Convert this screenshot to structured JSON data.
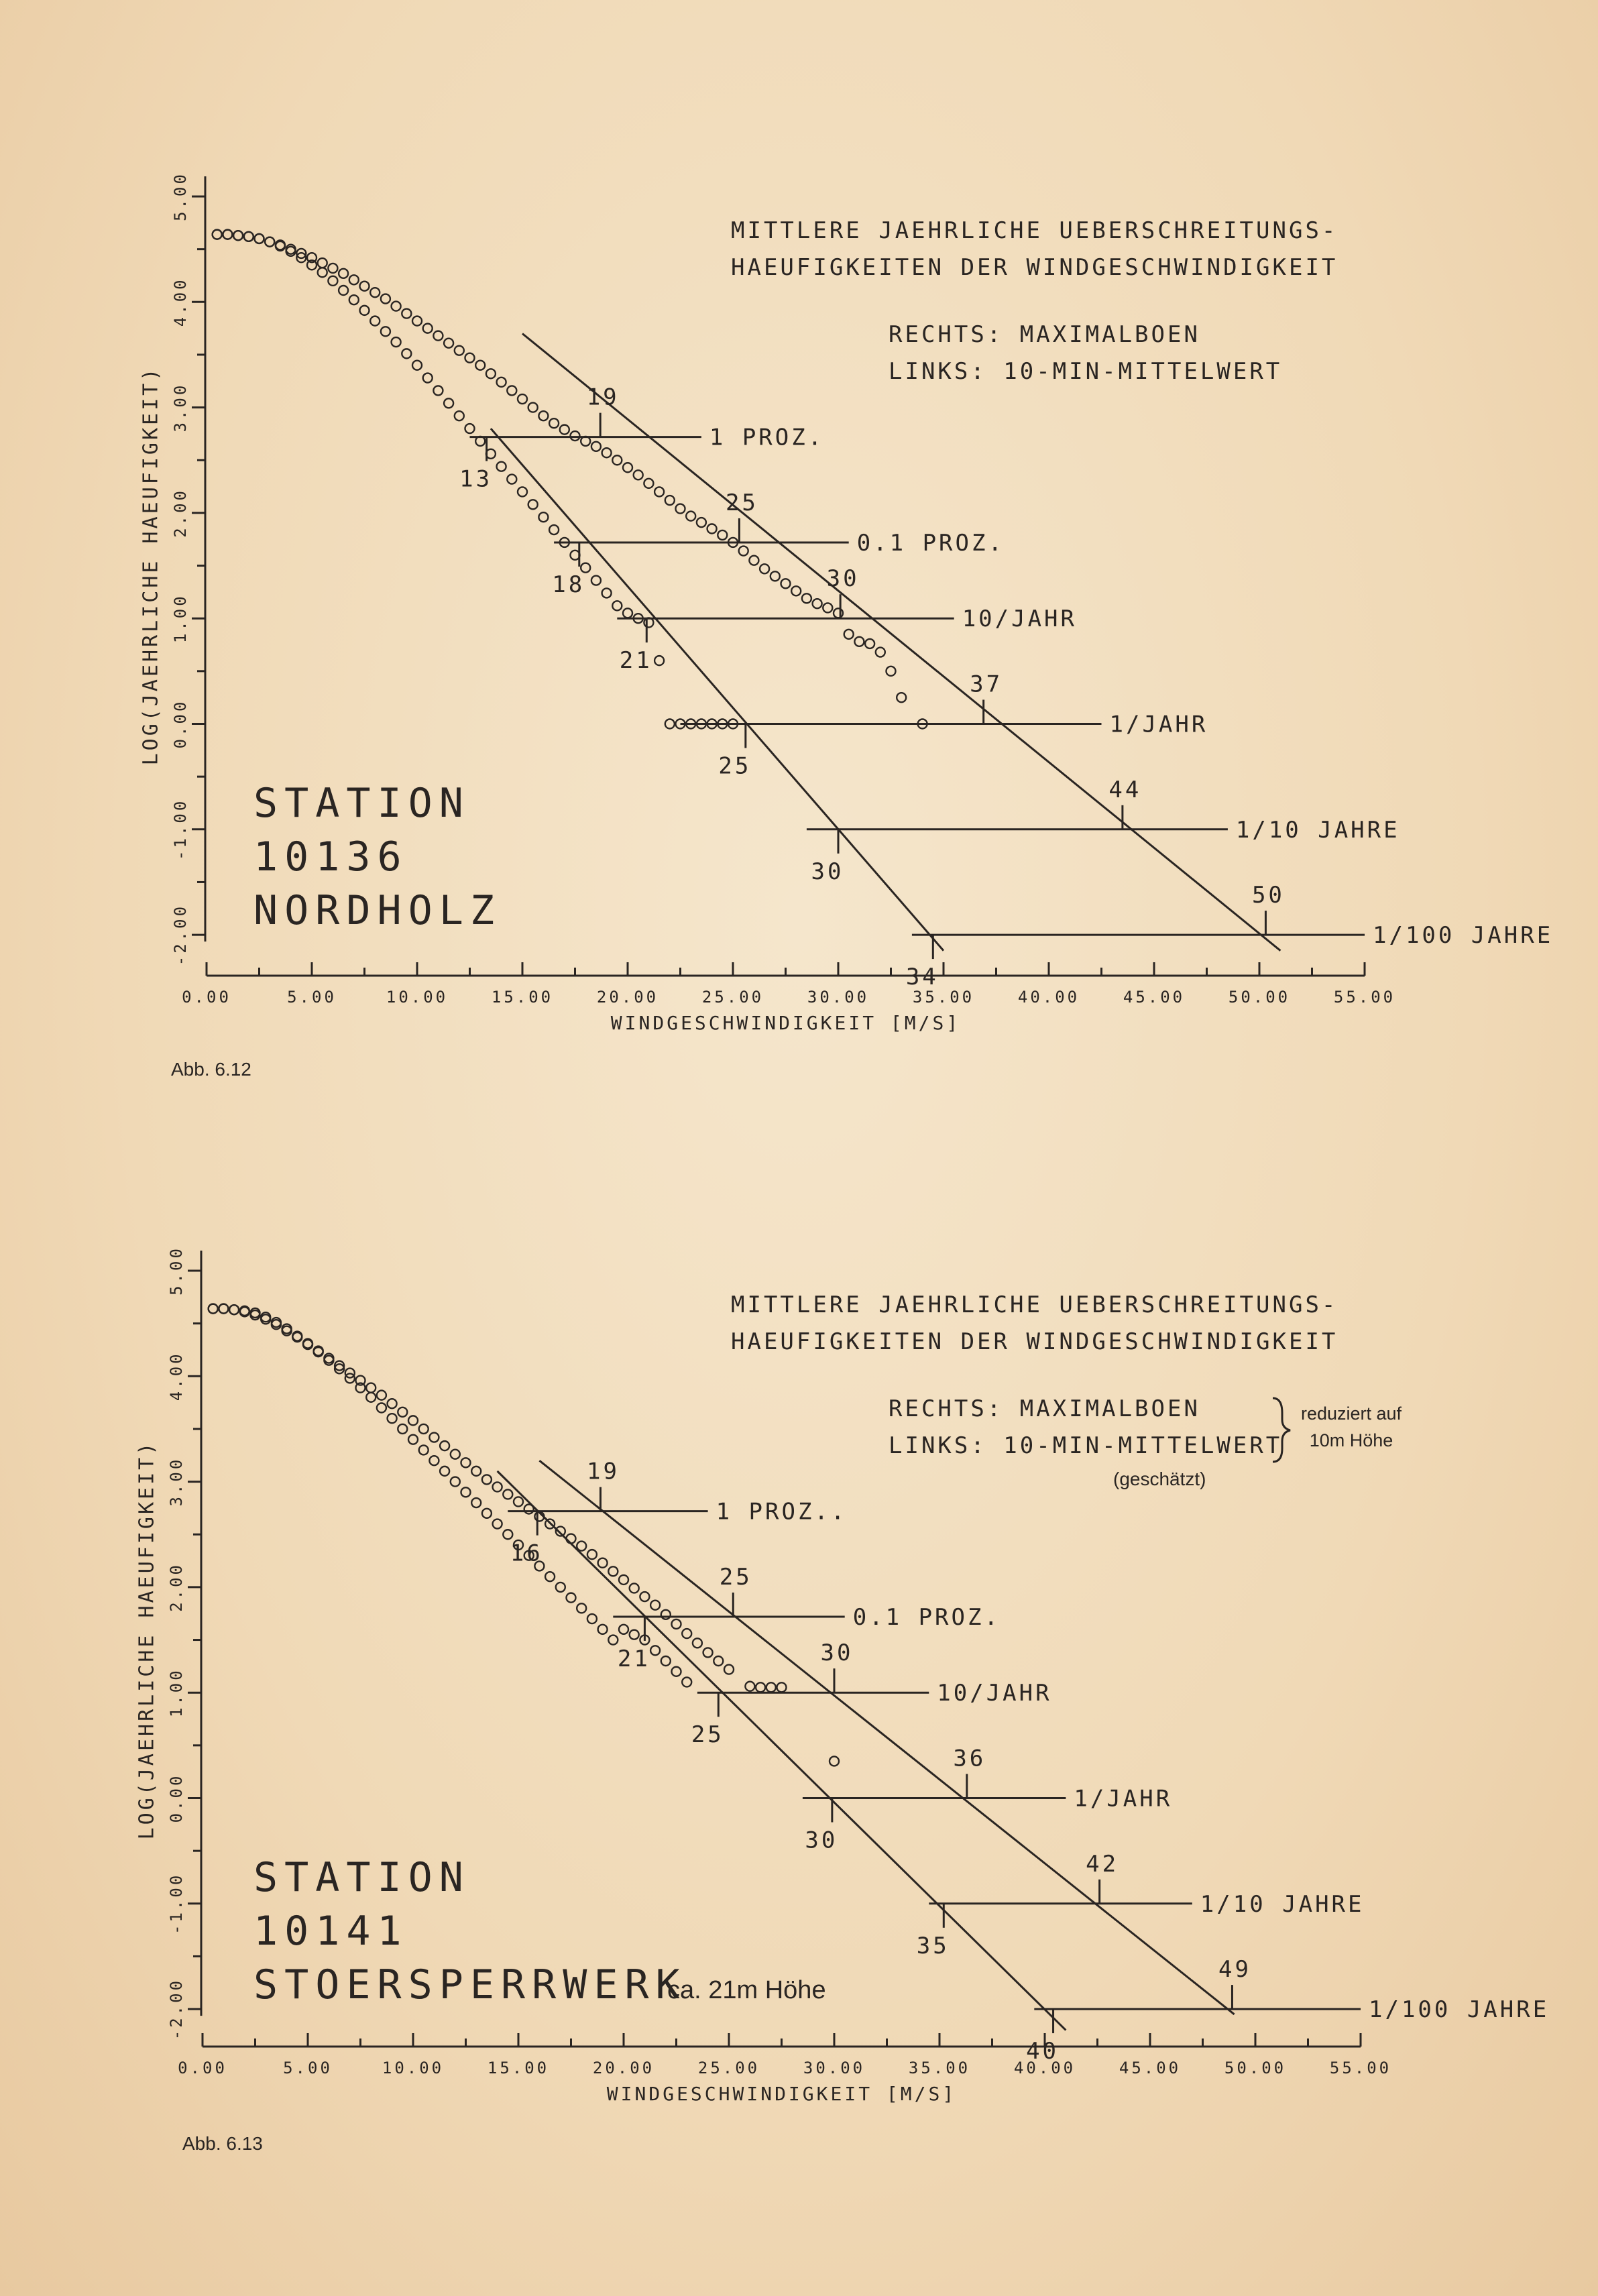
{
  "charts": [
    {
      "subtitle": [
        "MITTLERE JAEHRLICHE UEBERSCHREITUNGS-",
        "HAEUFIGKEITEN DER WINDGESCHWINDIGKEIT"
      ],
      "legend": [
        "RECHTS: MAXIMALBOEN",
        "LINKS: 10-MIN-MITTELWERT"
      ],
      "legend_note": "",
      "legend_brace": "",
      "station": [
        "STATION",
        "10136",
        "NORDHOLZ"
      ],
      "station_extra": "",
      "xlabel": "WINDGESCHWINDIGKEIT [M/S]",
      "ylabel": "LOG(JAEHRLICHE HAEUFIGKEIT)",
      "caption": "Abb. 6.12"
    },
    {
      "subtitle": [
        "MITTLERE JAEHRLICHE UEBERSCHREITUNGS-",
        "HAEUFIGKEITEN DER WINDGESCHWINDIGKEIT"
      ],
      "legend": [
        "RECHTS: MAXIMALBOEN",
        "LINKS: 10-MIN-MITTELWERT"
      ],
      "legend_note": "(geschätzt)",
      "legend_brace": [
        "reduziert auf",
        "10m Höhe"
      ],
      "station": [
        "STATION",
        "10141",
        "STOERSPERRWERK"
      ],
      "station_extra": "ca. 21m Höhe",
      "xlabel": "WINDGESCHWINDIGKEIT [M/S]",
      "ylabel": "LOG(JAEHRLICHE HAEUFIGKEIT)",
      "caption": "Abb. 6.13"
    }
  ],
  "chart_data": [
    {
      "type": "scatter",
      "xlabel": "WINDGESCHWINDIGKEIT [M/S]",
      "ylabel": "LOG(JAEHRLICHE HAEUFIGKEIT)",
      "xlim": [
        0,
        55
      ],
      "ylim": [
        -2,
        5
      ],
      "xticks": [
        "0.00",
        "5.00",
        "10.00",
        "15.00",
        "20.00",
        "25.00",
        "30.00",
        "35.00",
        "40.00",
        "45.00",
        "50.00",
        "55.00"
      ],
      "yticks": [
        "-2.00",
        "-1.00",
        "0.00",
        "1.00",
        "2.00",
        "3.00",
        "4.00",
        "5.00"
      ],
      "thresholds": [
        {
          "label": "1 PROZ.",
          "y": 2.72,
          "x_from": 12.5,
          "x_to": 23.5
        },
        {
          "label": "0.1 PROZ.",
          "y": 1.72,
          "x_from": 16.5,
          "x_to": 30.5
        },
        {
          "label": "10/JAHR",
          "y": 1.0,
          "x_from": 19.5,
          "x_to": 35.5
        },
        {
          "label": "1/JAHR",
          "y": 0.0,
          "x_from": 22.5,
          "x_to": 42.5
        },
        {
          "label": "1/10 JAHRE",
          "y": -1.0,
          "x_from": 28.5,
          "x_to": 48.5
        },
        {
          "label": "1/100 JAHRE",
          "y": -2.0,
          "x_from": 33.5,
          "x_to": 55.0
        }
      ],
      "crossings": [
        {
          "side": "left",
          "label": "13",
          "x": 13.3,
          "y": 2.72
        },
        {
          "side": "left",
          "label": "18",
          "x": 17.7,
          "y": 1.72
        },
        {
          "side": "left",
          "label": "21",
          "x": 20.9,
          "y": 1.0
        },
        {
          "side": "left",
          "label": "25",
          "x": 25.6,
          "y": 0.0
        },
        {
          "side": "left",
          "label": "30",
          "x": 30.0,
          "y": -1.0
        },
        {
          "side": "left",
          "label": "34",
          "x": 34.5,
          "y": -2.0
        },
        {
          "side": "right",
          "label": "19",
          "x": 18.7,
          "y": 2.72
        },
        {
          "side": "right",
          "label": "25",
          "x": 25.3,
          "y": 1.72
        },
        {
          "side": "right",
          "label": "30",
          "x": 30.1,
          "y": 1.0
        },
        {
          "side": "right",
          "label": "37",
          "x": 36.9,
          "y": 0.0
        },
        {
          "side": "right",
          "label": "44",
          "x": 43.5,
          "y": -1.0
        },
        {
          "side": "right",
          "label": "50",
          "x": 50.3,
          "y": -2.0
        }
      ],
      "series": [
        {
          "name": "RECHTS: MAXIMALBOEN",
          "line": [
            [
              15.0,
              3.7
            ],
            [
              51.0,
              -2.15
            ]
          ],
          "x": [
            0.5,
            1.0,
            1.5,
            2.0,
            2.5,
            3.0,
            3.5,
            4.0,
            4.5,
            5.0,
            5.5,
            6.0,
            6.5,
            7.0,
            7.5,
            8.0,
            8.5,
            9.0,
            9.5,
            10.0,
            10.5,
            11.0,
            11.5,
            12.0,
            12.5,
            13.0,
            13.5,
            14.0,
            14.5,
            15.0,
            15.5,
            16.0,
            16.5,
            17.0,
            17.5,
            18.0,
            18.5,
            19.0,
            19.5,
            20.0,
            20.5,
            21.0,
            21.5,
            22.0,
            22.5,
            23.0,
            23.5,
            24.0,
            24.5,
            25.0,
            25.5,
            26.0,
            26.5,
            27.0,
            27.5,
            28.0,
            28.5,
            29.0,
            29.5,
            30.0,
            30.5,
            31.0,
            31.5,
            32.0,
            32.5,
            33.0,
            34.0
          ],
          "y": [
            4.64,
            4.64,
            4.63,
            4.62,
            4.6,
            4.57,
            4.54,
            4.5,
            4.46,
            4.42,
            4.37,
            4.32,
            4.27,
            4.21,
            4.15,
            4.09,
            4.03,
            3.96,
            3.89,
            3.82,
            3.75,
            3.68,
            3.61,
            3.54,
            3.47,
            3.4,
            3.32,
            3.24,
            3.16,
            3.08,
            3.0,
            2.92,
            2.85,
            2.79,
            2.73,
            2.68,
            2.63,
            2.57,
            2.5,
            2.43,
            2.36,
            2.28,
            2.2,
            2.12,
            2.04,
            1.97,
            1.91,
            1.85,
            1.79,
            1.72,
            1.64,
            1.55,
            1.47,
            1.4,
            1.33,
            1.26,
            1.19,
            1.14,
            1.1,
            1.05,
            0.85,
            0.78,
            0.76,
            0.68,
            0.5,
            0.25,
            0.0
          ]
        },
        {
          "name": "LINKS: 10-MIN-MITTELWERT",
          "line": [
            [
              13.5,
              2.8
            ],
            [
              35.0,
              -2.15
            ]
          ],
          "x": [
            0.5,
            1.0,
            1.5,
            2.0,
            2.5,
            3.0,
            3.5,
            4.0,
            4.5,
            5.0,
            5.5,
            6.0,
            6.5,
            7.0,
            7.5,
            8.0,
            8.5,
            9.0,
            9.5,
            10.0,
            10.5,
            11.0,
            11.5,
            12.0,
            12.5,
            13.0,
            13.5,
            14.0,
            14.5,
            15.0,
            15.5,
            16.0,
            16.5,
            17.0,
            17.5,
            18.0,
            18.5,
            19.0,
            19.5,
            20.0,
            20.5,
            21.0,
            21.5,
            22.0,
            22.5,
            23.0,
            23.5,
            24.0,
            24.5,
            25.0
          ],
          "y": [
            4.64,
            4.64,
            4.63,
            4.62,
            4.6,
            4.57,
            4.53,
            4.48,
            4.42,
            4.35,
            4.28,
            4.2,
            4.11,
            4.02,
            3.92,
            3.82,
            3.72,
            3.62,
            3.51,
            3.4,
            3.28,
            3.16,
            3.04,
            2.92,
            2.8,
            2.68,
            2.56,
            2.44,
            2.32,
            2.2,
            2.08,
            1.96,
            1.84,
            1.72,
            1.6,
            1.48,
            1.36,
            1.24,
            1.12,
            1.05,
            1.0,
            0.96,
            0.6,
            0.0,
            0.0,
            0.0,
            0.0,
            0.0,
            0.0,
            0.0
          ]
        }
      ]
    },
    {
      "type": "scatter",
      "xlabel": "WINDGESCHWINDIGKEIT [M/S]",
      "ylabel": "LOG(JAEHRLICHE HAEUFIGKEIT)",
      "xlim": [
        0,
        55
      ],
      "ylim": [
        -2,
        5
      ],
      "xticks": [
        "0.00",
        "5.00",
        "10.00",
        "15.00",
        "20.00",
        "25.00",
        "30.00",
        "35.00",
        "40.00",
        "45.00",
        "50.00",
        "55.00"
      ],
      "yticks": [
        "-2.00",
        "-1.00",
        "0.00",
        "1.00",
        "2.00",
        "3.00",
        "4.00",
        "5.00"
      ],
      "thresholds": [
        {
          "label": "1 PROZ..",
          "y": 2.72,
          "x_from": 14.5,
          "x_to": 24.0
        },
        {
          "label": "0.1 PROZ.",
          "y": 1.72,
          "x_from": 19.5,
          "x_to": 30.5
        },
        {
          "label": "10/JAHR",
          "y": 1.0,
          "x_from": 23.5,
          "x_to": 34.5
        },
        {
          "label": "1/JAHR",
          "y": 0.0,
          "x_from": 28.5,
          "x_to": 41.0
        },
        {
          "label": "1/10 JAHRE",
          "y": -1.0,
          "x_from": 34.5,
          "x_to": 47.0
        },
        {
          "label": "1/100 JAHRE",
          "y": -2.0,
          "x_from": 39.5,
          "x_to": 55.0
        }
      ],
      "crossings": [
        {
          "side": "left",
          "label": "16",
          "x": 15.9,
          "y": 2.72
        },
        {
          "side": "left",
          "label": "21",
          "x": 21.0,
          "y": 1.72
        },
        {
          "side": "left",
          "label": "25",
          "x": 24.5,
          "y": 1.0
        },
        {
          "side": "left",
          "label": "30",
          "x": 29.9,
          "y": 0.0
        },
        {
          "side": "left",
          "label": "35",
          "x": 35.2,
          "y": -1.0
        },
        {
          "side": "left",
          "label": "40",
          "x": 40.4,
          "y": -2.0
        },
        {
          "side": "right",
          "label": "19",
          "x": 18.9,
          "y": 2.72
        },
        {
          "side": "right",
          "label": "25",
          "x": 25.2,
          "y": 1.72
        },
        {
          "side": "right",
          "label": "30",
          "x": 30.0,
          "y": 1.0
        },
        {
          "side": "right",
          "label": "36",
          "x": 36.3,
          "y": 0.0
        },
        {
          "side": "right",
          "label": "42",
          "x": 42.6,
          "y": -1.0
        },
        {
          "side": "right",
          "label": "49",
          "x": 48.9,
          "y": -2.0
        }
      ],
      "series": [
        {
          "name": "RECHTS: MAXIMALBOEN",
          "line": [
            [
              16.0,
              3.2
            ],
            [
              49.0,
              -2.05
            ]
          ],
          "x": [
            0.5,
            1.0,
            1.5,
            2.0,
            2.5,
            3.0,
            3.5,
            4.0,
            4.5,
            5.0,
            5.5,
            6.0,
            6.5,
            7.0,
            7.5,
            8.0,
            8.5,
            9.0,
            9.5,
            10.0,
            10.5,
            11.0,
            11.5,
            12.0,
            12.5,
            13.0,
            13.5,
            14.0,
            14.5,
            15.0,
            15.5,
            16.0,
            16.5,
            17.0,
            17.5,
            18.0,
            18.5,
            19.0,
            19.5,
            20.0,
            20.5,
            21.0,
            21.5,
            22.0,
            22.5,
            23.0,
            23.5,
            24.0,
            24.5,
            25.0,
            26.0,
            26.5,
            27.0,
            27.5,
            30.0
          ],
          "y": [
            4.64,
            4.64,
            4.63,
            4.62,
            4.6,
            4.56,
            4.51,
            4.45,
            4.38,
            4.31,
            4.24,
            4.17,
            4.1,
            4.03,
            3.96,
            3.89,
            3.82,
            3.74,
            3.66,
            3.58,
            3.5,
            3.42,
            3.34,
            3.26,
            3.18,
            3.1,
            3.02,
            2.95,
            2.88,
            2.81,
            2.74,
            2.67,
            2.6,
            2.53,
            2.46,
            2.39,
            2.31,
            2.23,
            2.15,
            2.07,
            1.99,
            1.91,
            1.83,
            1.74,
            1.65,
            1.56,
            1.47,
            1.38,
            1.3,
            1.22,
            1.06,
            1.05,
            1.05,
            1.05,
            0.35
          ]
        },
        {
          "name": "LINKS: 10-MIN-MITTELWERT",
          "line": [
            [
              14.0,
              3.1
            ],
            [
              41.0,
              -2.2
            ]
          ],
          "x": [
            0.5,
            1.0,
            1.5,
            2.0,
            2.5,
            3.0,
            3.5,
            4.0,
            4.5,
            5.0,
            5.5,
            6.0,
            6.5,
            7.0,
            7.5,
            8.0,
            8.5,
            9.0,
            9.5,
            10.0,
            10.5,
            11.0,
            11.5,
            12.0,
            12.5,
            13.0,
            13.5,
            14.0,
            14.5,
            15.0,
            15.5,
            16.0,
            16.5,
            17.0,
            17.5,
            18.0,
            18.5,
            19.0,
            19.5,
            20.0,
            20.5,
            21.0,
            21.5,
            22.0,
            22.5,
            23.0
          ],
          "y": [
            4.64,
            4.64,
            4.63,
            4.61,
            4.58,
            4.54,
            4.49,
            4.43,
            4.37,
            4.3,
            4.23,
            4.15,
            4.07,
            3.98,
            3.89,
            3.8,
            3.7,
            3.6,
            3.5,
            3.4,
            3.3,
            3.2,
            3.1,
            3.0,
            2.9,
            2.8,
            2.7,
            2.6,
            2.5,
            2.4,
            2.3,
            2.2,
            2.1,
            2.0,
            1.9,
            1.8,
            1.7,
            1.6,
            1.5,
            1.6,
            1.55,
            1.5,
            1.4,
            1.3,
            1.2,
            1.1
          ]
        }
      ]
    }
  ]
}
